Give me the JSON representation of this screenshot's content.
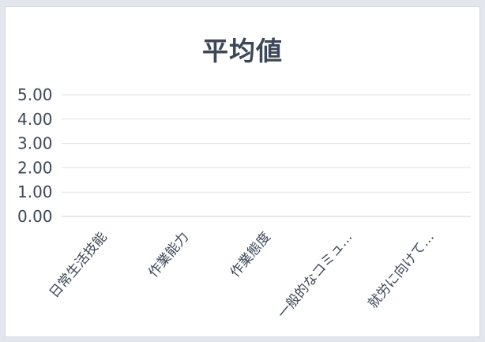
{
  "chart_data": {
    "type": "bar",
    "title": "平均値",
    "categories": [
      "日常生活技能",
      "作業能力",
      "作業態度",
      "一般的なコミュ…",
      "就労に向けて…"
    ],
    "series": [
      {
        "values": [
          0,
          0,
          0,
          0,
          0
        ]
      }
    ],
    "yticks": [
      "0.00",
      "1.00",
      "2.00",
      "3.00",
      "4.00",
      "5.00"
    ],
    "ylim": [
      0,
      5
    ],
    "grid": true,
    "legend": "none",
    "colors": {
      "background": "#e3e6ec",
      "panel": "#ffffff",
      "gridline": "#dde1e8",
      "text": "#3d4757",
      "bar": "#4a7bd0"
    }
  }
}
